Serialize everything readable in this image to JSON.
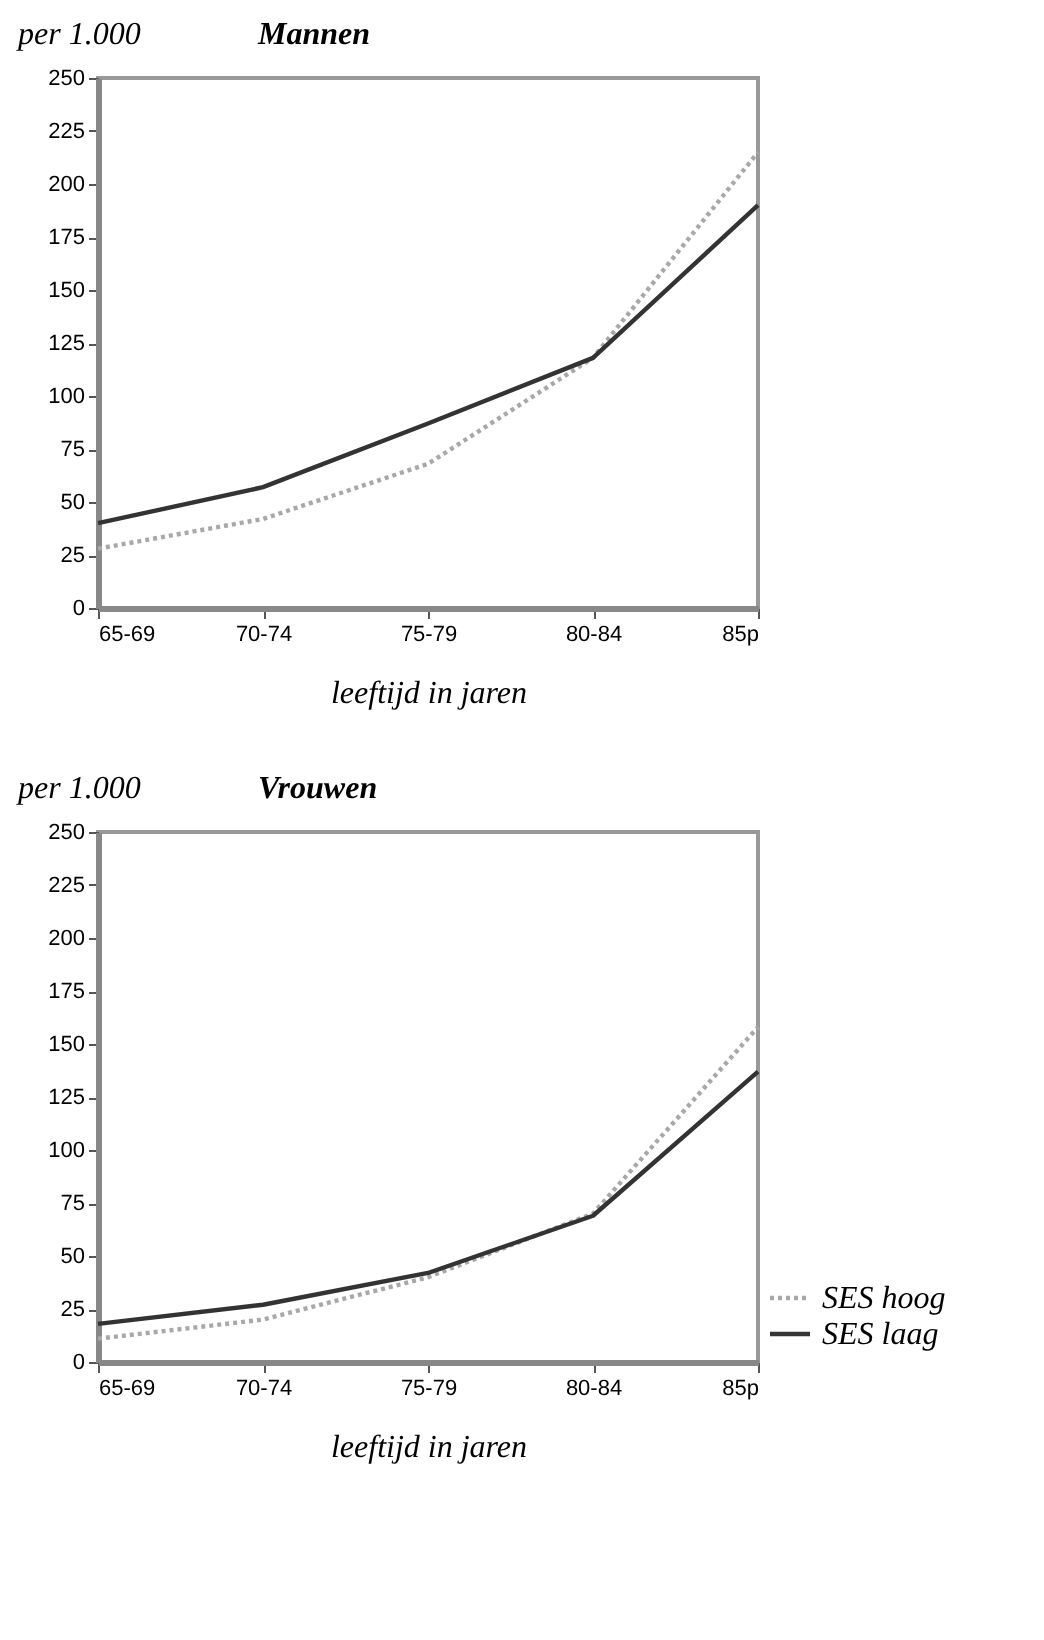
{
  "chart_data": [
    {
      "type": "line",
      "title": "Mannen",
      "ylabel": "per 1.000",
      "xlabel": "leeftijd in jaren",
      "categories": [
        "65-69",
        "70-74",
        "75-79",
        "80-84",
        "85p"
      ],
      "series": [
        {
          "color": "#a8a8a8",
          "line_style": "dotted",
          "values": [
            28,
            42,
            68,
            118,
            215
          ]
        },
        {
          "color": "#333333",
          "line_style": "solid",
          "values": [
            40,
            57,
            87,
            118,
            190
          ]
        }
      ],
      "ylim": [
        0,
        250
      ],
      "yticks": [
        0,
        25,
        50,
        75,
        100,
        125,
        150,
        175,
        200,
        225,
        250
      ],
      "grid": false,
      "legend": false
    },
    {
      "type": "line",
      "title": "Vrouwen",
      "ylabel": "per 1.000",
      "xlabel": "leeftijd in jaren",
      "categories": [
        "65-69",
        "70-74",
        "75-79",
        "80-84",
        "85p"
      ],
      "series": [
        {
          "name": "SES hoog",
          "color": "#a8a8a8",
          "line_style": "dotted",
          "values": [
            11,
            20,
            40,
            70,
            158
          ]
        },
        {
          "name": "SES laag",
          "color": "#333333",
          "line_style": "solid",
          "values": [
            18,
            27,
            42,
            69,
            137
          ]
        }
      ],
      "ylim": [
        0,
        250
      ],
      "yticks": [
        0,
        25,
        50,
        75,
        100,
        125,
        150,
        175,
        200,
        225,
        250
      ],
      "grid": false,
      "legend": "bottom right"
    }
  ]
}
